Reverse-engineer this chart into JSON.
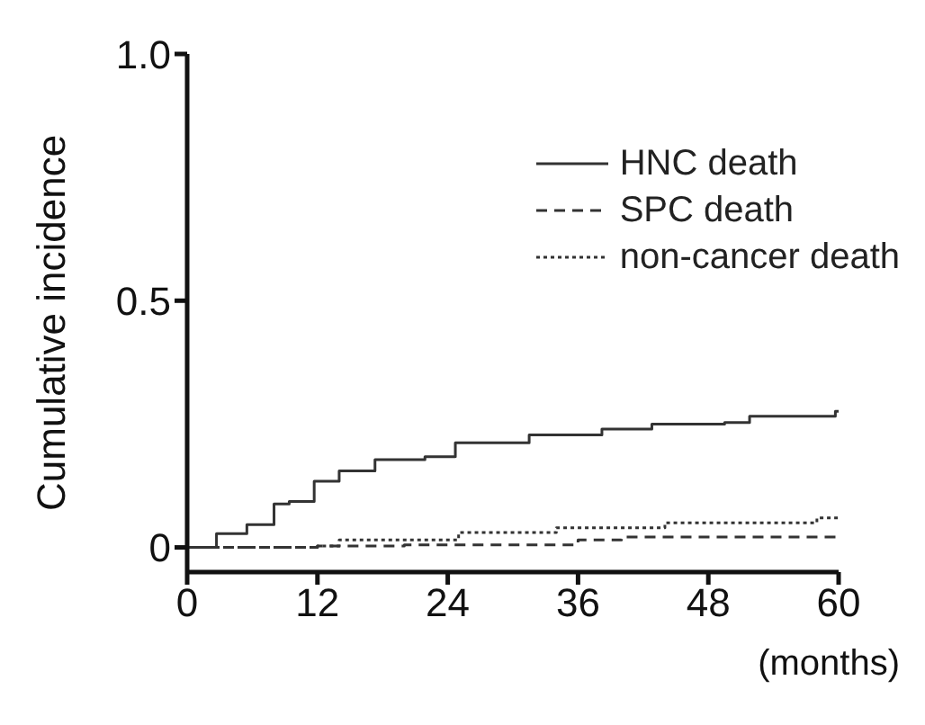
{
  "chart_data": {
    "type": "step",
    "ylabel": "Cumulative incidence",
    "xlabel": "(months)",
    "xlim": [
      0,
      60
    ],
    "xticks": [
      0,
      12,
      24,
      36,
      48,
      60
    ],
    "ylim": [
      -0.05,
      1.0
    ],
    "yticks": [
      {
        "value": 0,
        "label": "0"
      },
      0.5,
      {
        "value": 1.0,
        "label": "1.0"
      }
    ],
    "legend": "top right",
    "grid": false,
    "marker": "none",
    "series": [
      {
        "name": "HNC death",
        "color": "#333333",
        "line_style": "solid",
        "x": [
          0,
          2.7,
          5.5,
          8,
          9.4,
          11.7,
          14,
          17.3,
          21.9,
          24.7,
          31.5,
          38.2,
          42.8,
          49.5,
          51.8,
          59.7,
          60
        ],
        "values": [
          0,
          0.028,
          0.046,
          0.088,
          0.093,
          0.134,
          0.155,
          0.178,
          0.184,
          0.212,
          0.228,
          0.24,
          0.25,
          0.253,
          0.266,
          0.276,
          0.276
        ]
      },
      {
        "name": "SPC death",
        "color": "#333333",
        "line_style": "dashed",
        "x": [
          0,
          12,
          20,
          36,
          40,
          60
        ],
        "values": [
          0,
          0.003,
          0.005,
          0.015,
          0.021,
          0.021
        ]
      },
      {
        "name": "non-cancer death",
        "color": "#333333",
        "line_style": "dotted",
        "x": [
          0,
          12,
          14,
          25,
          34,
          44,
          58,
          60
        ],
        "values": [
          0,
          0.003,
          0.015,
          0.03,
          0.04,
          0.05,
          0.06,
          0.065
        ]
      }
    ]
  }
}
